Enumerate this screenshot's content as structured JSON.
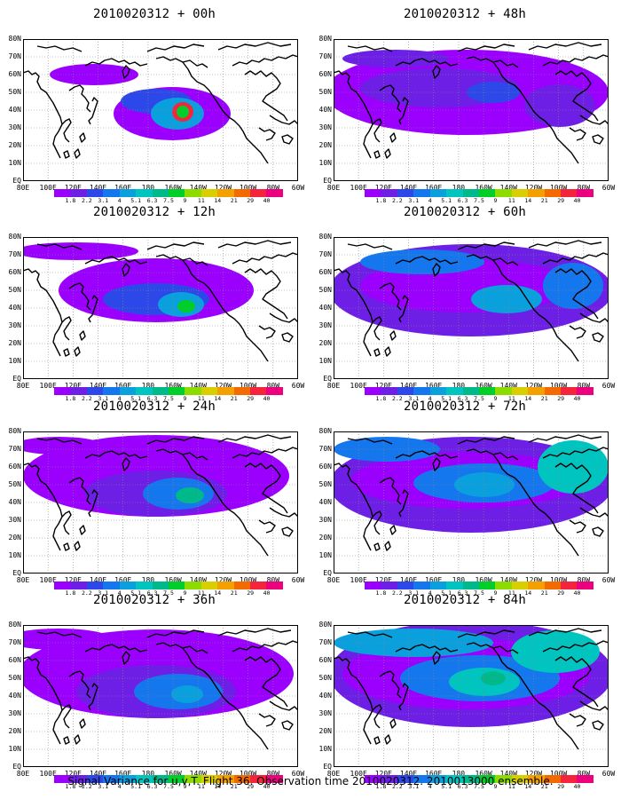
{
  "caption": "Signal Variance for u,v,T. Flight 36. Observation time 2010020312. 2010013000 ensemble.",
  "lat_labels": [
    "80N",
    "70N",
    "60N",
    "50N",
    "40N",
    "30N",
    "20N",
    "10N",
    "EQ"
  ],
  "lon_labels": [
    "80E",
    "100E",
    "120E",
    "140E",
    "160E",
    "180",
    "160W",
    "140W",
    "120W",
    "100W",
    "80W",
    "60W"
  ],
  "colorbar": {
    "labels": [
      "1.8",
      "2.2",
      "3.1",
      "4",
      "5.1",
      "6.3",
      "7.5",
      "9",
      "11",
      "14",
      "21",
      "29",
      "40"
    ],
    "colors": [
      "#9b00ff",
      "#6e1fe6",
      "#2d48e8",
      "#1577ee",
      "#0aa0dd",
      "#00c4c0",
      "#00b98a",
      "#00cf2a",
      "#8ddc00",
      "#d9cf00",
      "#f3a000",
      "#f36a00",
      "#f3243c",
      "#ec007e"
    ]
  },
  "panels": [
    {
      "title": "2010020312 + 00h"
    },
    {
      "title": "2010020312 + 48h"
    },
    {
      "title": "2010020312 + 12h"
    },
    {
      "title": "2010020312 + 60h"
    },
    {
      "title": "2010020312 + 24h"
    },
    {
      "title": "2010020312 + 72h"
    },
    {
      "title": "2010020312 + 36h"
    },
    {
      "title": "2010020312 + 84h"
    }
  ]
}
